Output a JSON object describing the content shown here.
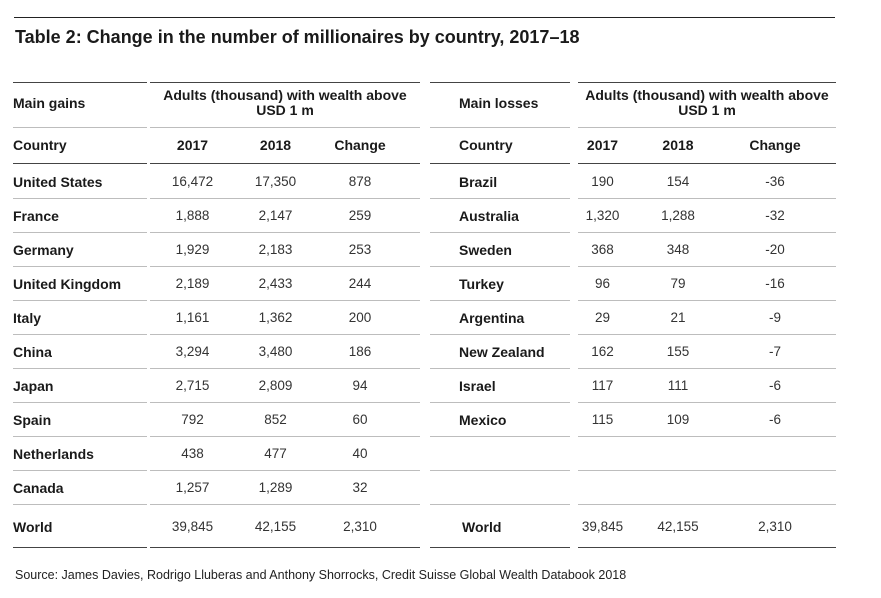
{
  "title": "Table 2: Change in the number of millionaires by country, 2017–18",
  "source": "Source: James Davies, Rodrigo Lluberas and Anthony Shorrocks, Credit Suisse Global Wealth Databook 2018",
  "gains": {
    "section_label": "Main gains",
    "group_header": "Adults (thousand) with wealth above USD 1 m",
    "columns": [
      "Country",
      "2017",
      "2018",
      "Change"
    ],
    "rows": [
      [
        "United States",
        "16,472",
        "17,350",
        "878"
      ],
      [
        "France",
        "1,888",
        "2,147",
        "259"
      ],
      [
        "Germany",
        "1,929",
        "2,183",
        "253"
      ],
      [
        "United Kingdom",
        "2,189",
        "2,433",
        "244"
      ],
      [
        "Italy",
        "1,161",
        "1,362",
        "200"
      ],
      [
        "China",
        "3,294",
        "3,480",
        "186"
      ],
      [
        "Japan",
        "2,715",
        "2,809",
        "94"
      ],
      [
        "Spain",
        "792",
        "852",
        "60"
      ],
      [
        "Netherlands",
        "438",
        "477",
        "40"
      ],
      [
        "Canada",
        "1,257",
        "1,289",
        "32"
      ]
    ],
    "total": [
      "World",
      "39,845",
      "42,155",
      "2,310"
    ]
  },
  "losses": {
    "section_label": "Main losses",
    "group_header": "Adults (thousand) with wealth above USD 1 m",
    "columns": [
      "Country",
      "2017",
      "2018",
      "Change"
    ],
    "rows": [
      [
        "Brazil",
        "190",
        "154",
        "-36"
      ],
      [
        "Australia",
        "1,320",
        "1,288",
        "-32"
      ],
      [
        "Sweden",
        "368",
        "348",
        "-20"
      ],
      [
        "Turkey",
        "96",
        "79",
        "-16"
      ],
      [
        "Argentina",
        "29",
        "21",
        "-9"
      ],
      [
        "New Zealand",
        "162",
        "155",
        "-7"
      ],
      [
        "Israel",
        "117",
        "111",
        "-6"
      ],
      [
        "Mexico",
        "115",
        "109",
        "-6"
      ]
    ],
    "total": [
      "World",
      "39,845",
      "42,155",
      "2,310"
    ]
  }
}
